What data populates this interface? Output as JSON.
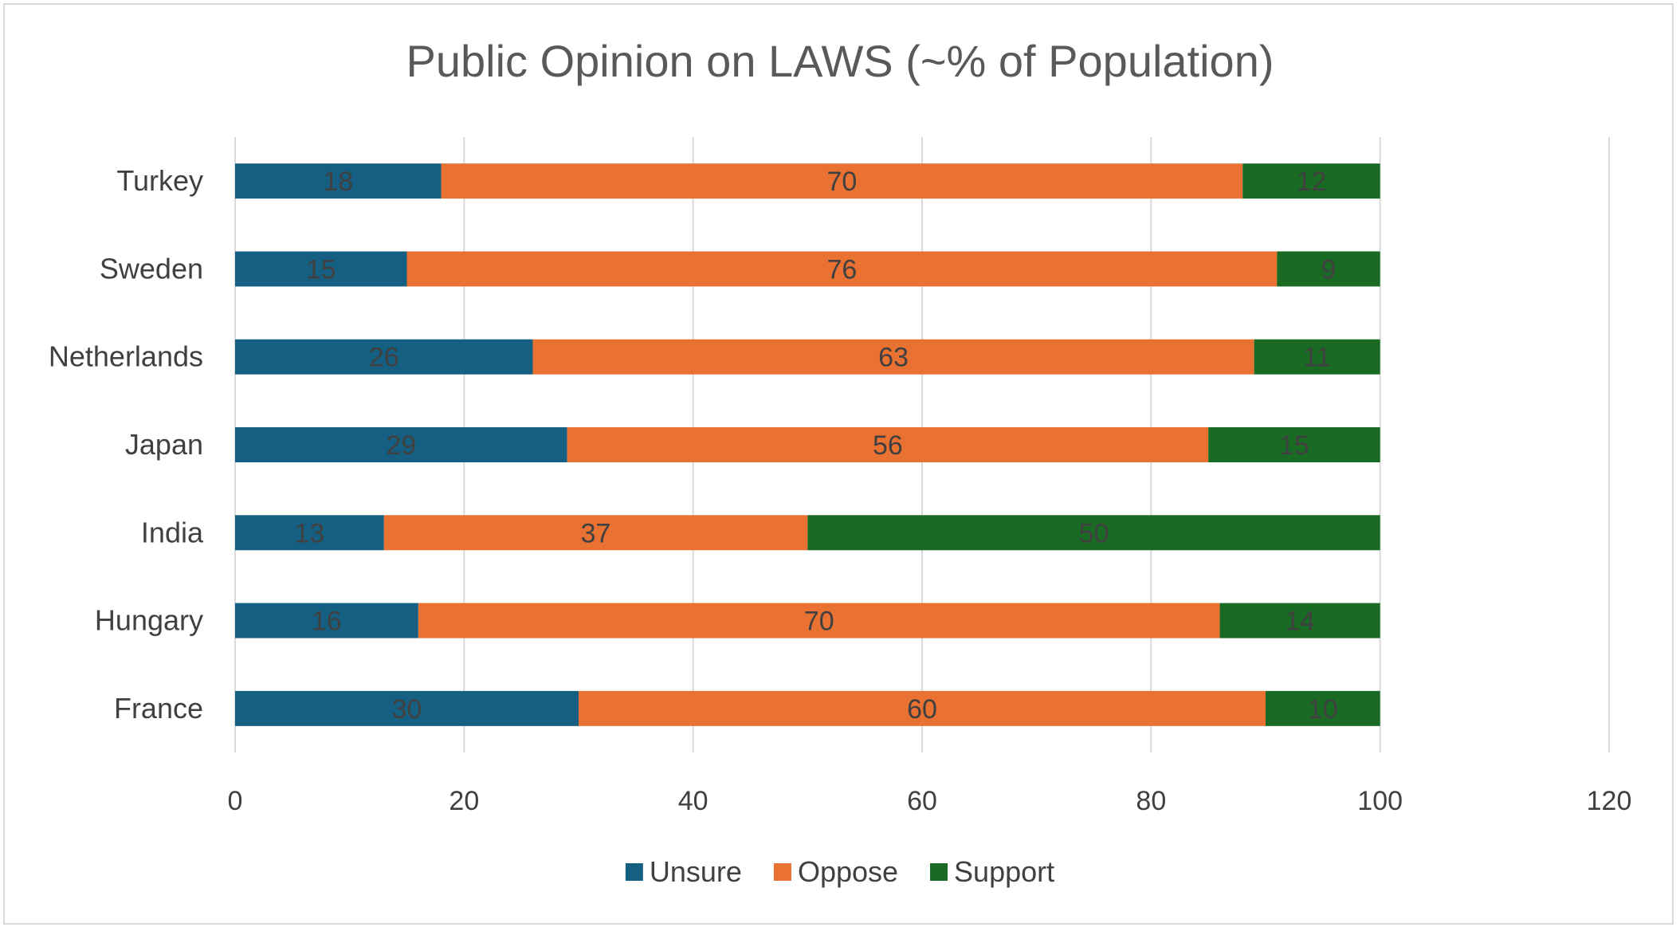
{
  "chart_data": {
    "type": "bar",
    "orientation": "horizontal",
    "stacked": true,
    "title": "Public Opinion on LAWS (~% of Population)",
    "xlabel": "",
    "ylabel": "",
    "categories": [
      "France",
      "Hungary",
      "India",
      "Japan",
      "Netherlands",
      "Sweden",
      "Turkey"
    ],
    "series": [
      {
        "name": "Unsure",
        "color": "#156082",
        "values": [
          30,
          16,
          13,
          29,
          26,
          15,
          18
        ]
      },
      {
        "name": "Oppose",
        "color": "#E97132",
        "values": [
          60,
          70,
          37,
          56,
          63,
          76,
          70
        ]
      },
      {
        "name": "Support",
        "color": "#196B24",
        "values": [
          10,
          14,
          50,
          15,
          11,
          9,
          12
        ]
      }
    ],
    "xlim": [
      0,
      120
    ],
    "xticks": [
      "0",
      "20",
      "40",
      "60",
      "80",
      "100",
      "120"
    ],
    "grid": "vertical",
    "legend": "bottom",
    "data_labels": true
  }
}
